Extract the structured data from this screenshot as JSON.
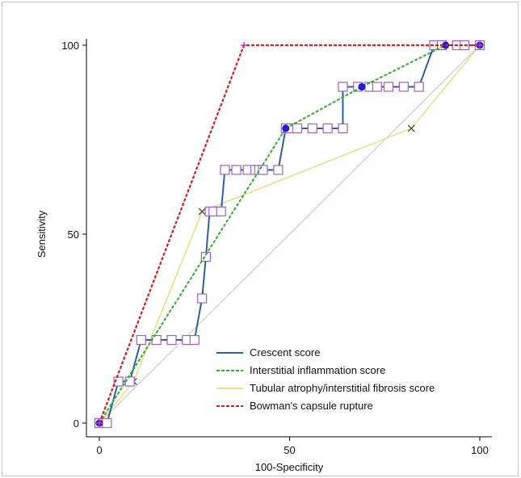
{
  "chart_data": {
    "type": "line",
    "xlabel": "100-Specificity",
    "ylabel": "Sensitivity",
    "xlim": [
      0,
      100
    ],
    "ylim": [
      0,
      100
    ],
    "x_ticks": [
      "0",
      "50",
      "100"
    ],
    "y_ticks": [
      "0",
      "50",
      "100"
    ],
    "grid": false,
    "legend_position": "bottom-right",
    "diagonal_color": "#d9c2cc",
    "series": [
      {
        "name": "Crescent score",
        "color": "#2f5f9a",
        "marker": "square",
        "x": [
          0,
          0,
          2,
          5,
          8,
          11,
          15,
          19,
          23,
          25,
          27,
          28,
          29,
          30,
          32,
          33,
          36,
          39,
          41,
          42,
          43,
          47,
          49,
          50,
          52,
          56,
          60,
          64,
          64,
          68,
          71,
          73,
          76,
          80,
          84,
          88,
          90,
          94,
          96,
          100
        ],
        "y": [
          0,
          0,
          0,
          11,
          11,
          22,
          22,
          22,
          22,
          22,
          33,
          44,
          56,
          56,
          56,
          67,
          67,
          67,
          67,
          67,
          67,
          67,
          78,
          78,
          78,
          78,
          78,
          78,
          89,
          89,
          89,
          89,
          89,
          89,
          89,
          100,
          100,
          100,
          100,
          100
        ]
      },
      {
        "name": "Interstitial inflammation score",
        "color": "#33aa33",
        "marker": "circle",
        "x": [
          0,
          49,
          69,
          91,
          100
        ],
        "y": [
          0,
          78,
          89,
          100,
          100
        ]
      },
      {
        "name": "Tubular atrophy/interstitial fibrosis score",
        "color": "#e6e08a",
        "marker": "x",
        "x": [
          0,
          9,
          27,
          82,
          100
        ],
        "y": [
          0,
          11,
          56,
          78,
          100
        ]
      },
      {
        "name": "Bowman's capsule rupture",
        "color": "#cc2222",
        "marker": "plus",
        "x": [
          0,
          38,
          100
        ],
        "y": [
          0,
          100,
          100
        ]
      }
    ]
  }
}
